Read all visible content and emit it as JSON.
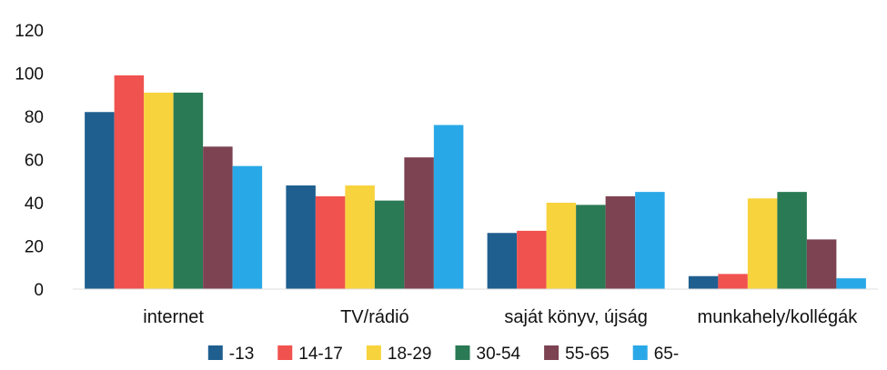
{
  "chart_data": {
    "type": "bar",
    "title": "",
    "xlabel": "",
    "ylabel": "",
    "ylim": [
      0,
      120
    ],
    "yticks": [
      0,
      20,
      40,
      60,
      80,
      100,
      120
    ],
    "grid": false,
    "legend_position": "bottom",
    "categories": [
      "internet",
      "TV/rádió",
      "saját könyv, újság",
      "munkahely/kollégák"
    ],
    "series": [
      {
        "name": "-13",
        "color": "#1f5f8f",
        "values": [
          82,
          48,
          26,
          6
        ]
      },
      {
        "name": "14-17",
        "color": "#f0524f",
        "values": [
          99,
          43,
          27,
          7
        ]
      },
      {
        "name": "18-29",
        "color": "#f7d33d",
        "values": [
          91,
          48,
          40,
          42
        ]
      },
      {
        "name": "30-54",
        "color": "#2a7a55",
        "values": [
          91,
          41,
          39,
          45
        ]
      },
      {
        "name": "55-65",
        "color": "#7d4352",
        "values": [
          66,
          61,
          43,
          23
        ]
      },
      {
        "name": "65-",
        "color": "#29a8e8",
        "values": [
          57,
          76,
          45,
          5
        ]
      }
    ]
  }
}
